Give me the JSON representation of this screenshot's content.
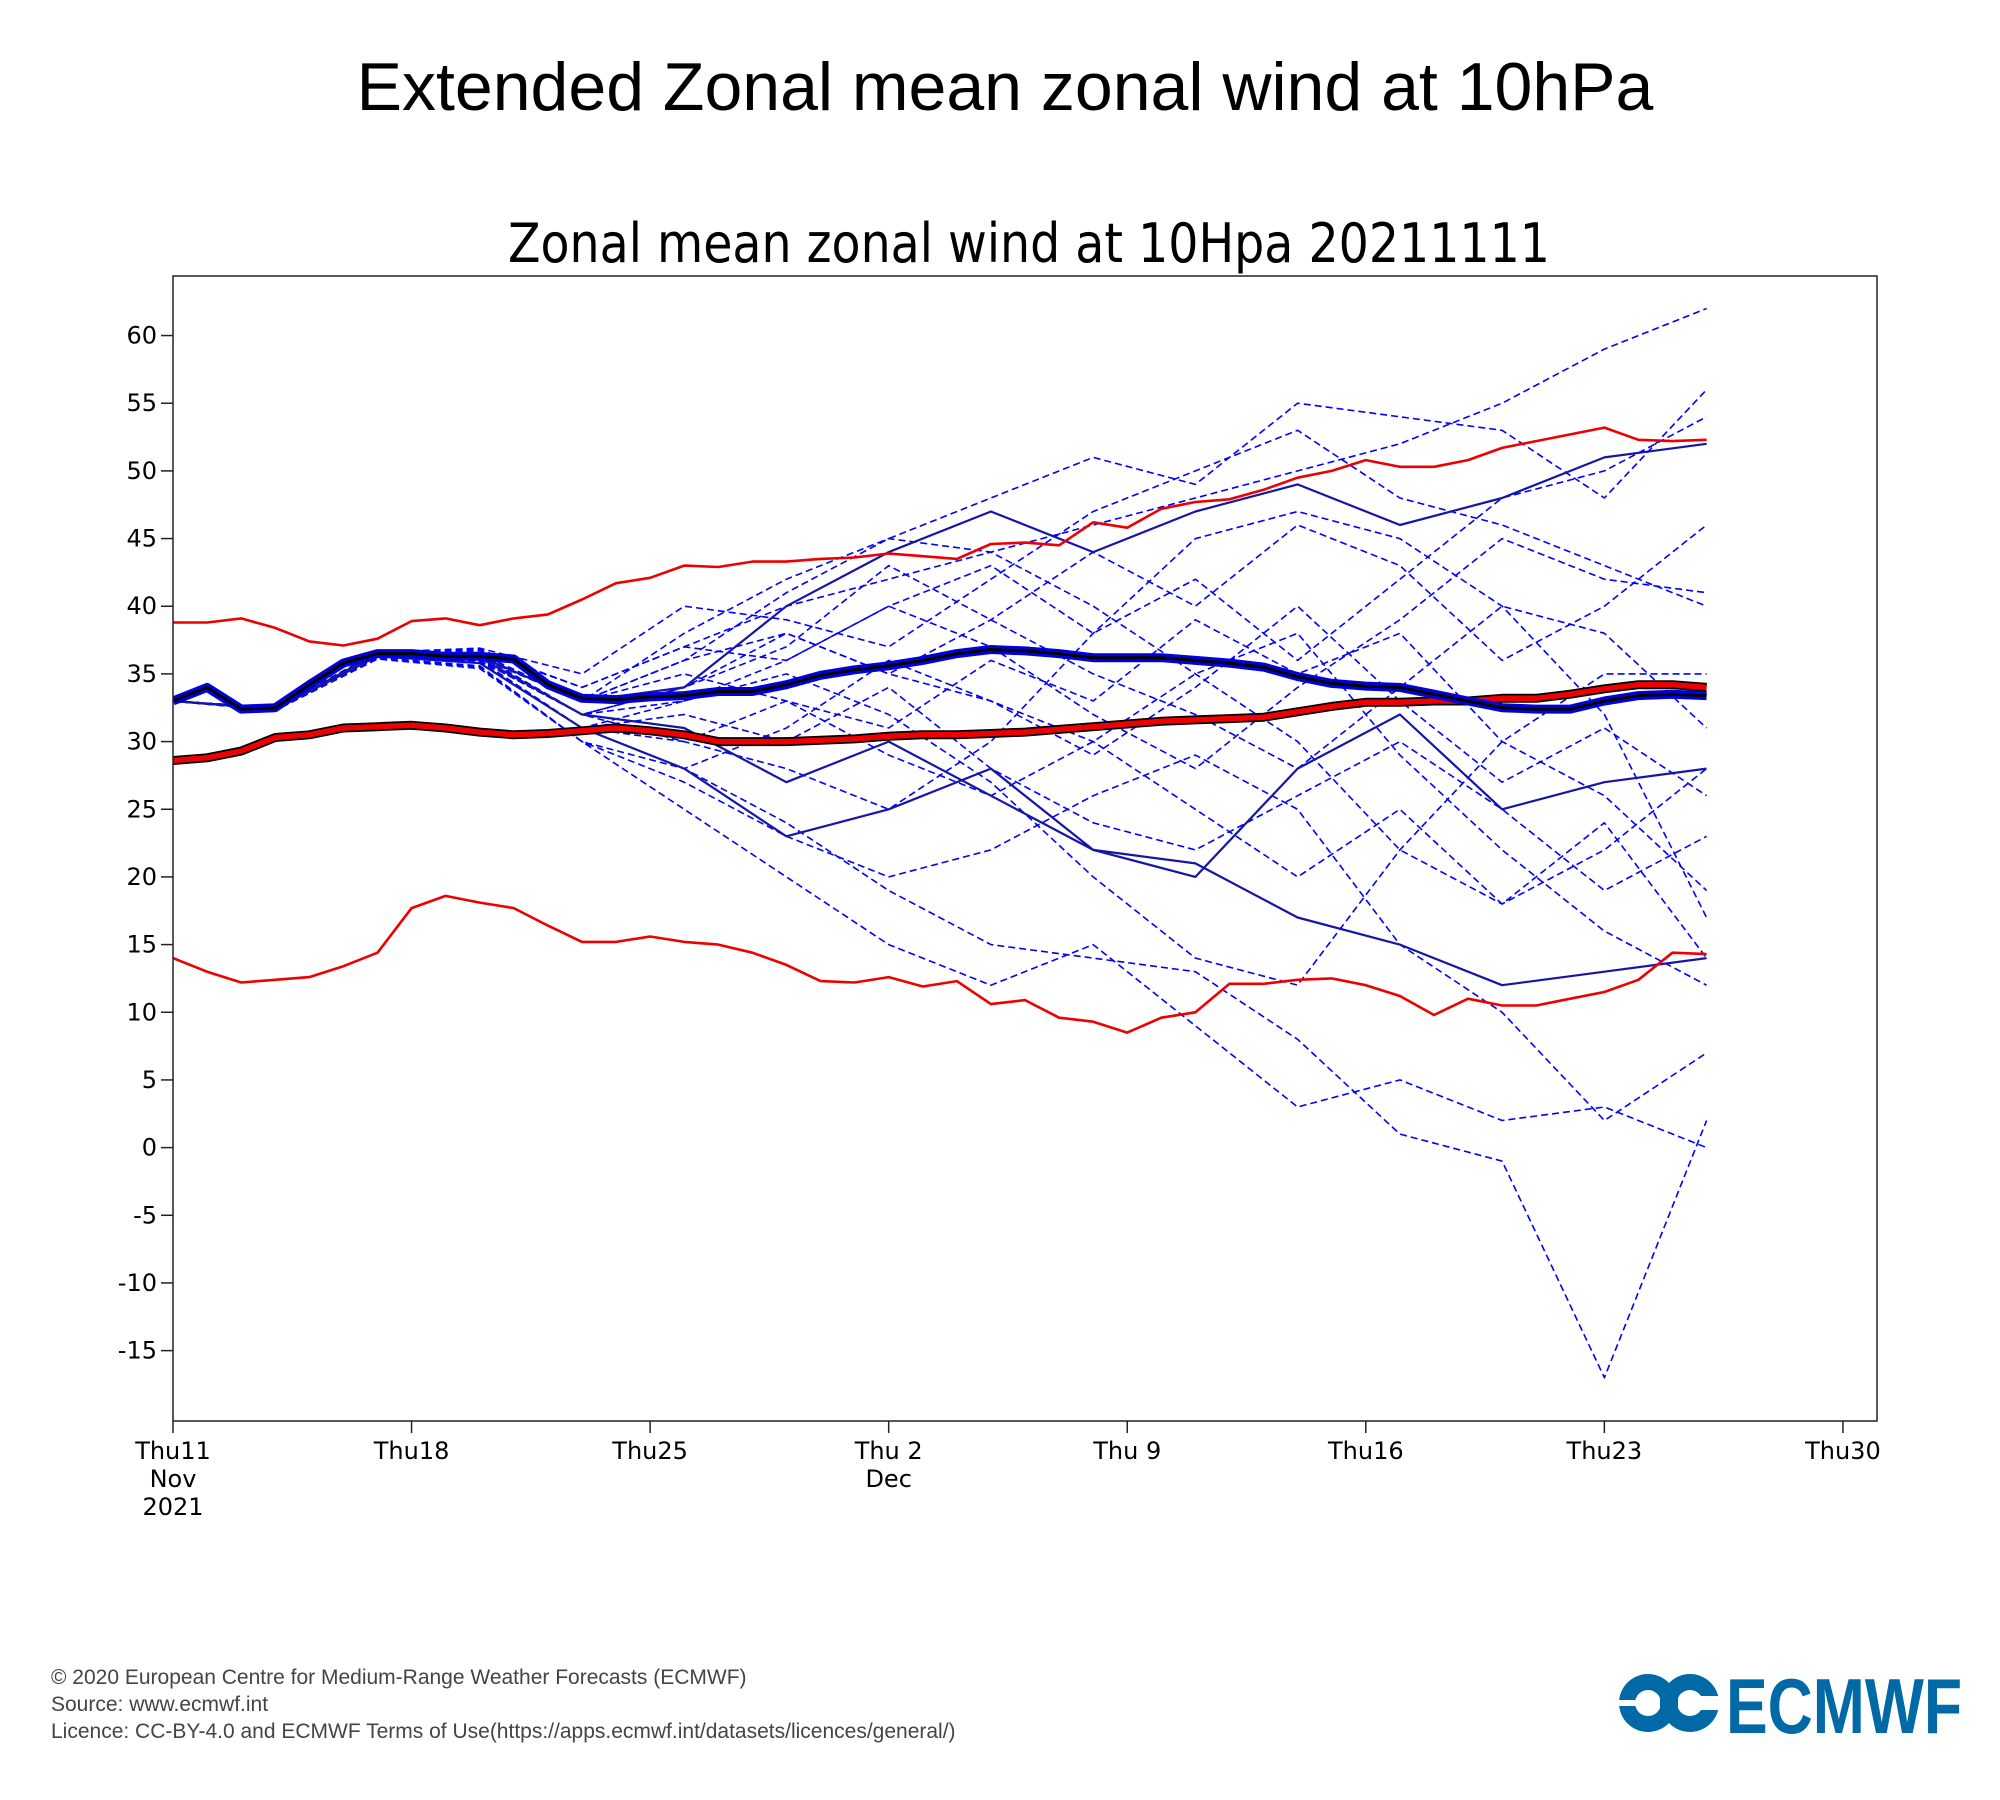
{
  "title": "Extended Zonal mean zonal wind at 10hPa",
  "footer": {
    "line1": "© 2020 European Centre for Medium-Range Weather Forecasts (ECMWF)",
    "line2": "Source: www.ecmwf.int",
    "line3": "Licence: CC-BY-4.0 and ECMWF Terms of Use(https://apps.ecmwf.int/datasets/licences/general/)"
  },
  "logo": {
    "text": "ECMWF",
    "color": "#0069a6"
  },
  "chart_data": {
    "type": "line",
    "title": "Zonal mean zonal wind at 10Hpa 20211111",
    "xlabel": "",
    "ylabel": "",
    "xlim_days": [
      0,
      50
    ],
    "ylim": [
      -20.2,
      64.4
    ],
    "grid": false,
    "yticks": [
      60,
      55,
      50,
      45,
      40,
      35,
      30,
      25,
      20,
      15,
      10,
      5,
      0,
      -5,
      -10,
      -15
    ],
    "xticks": [
      {
        "day": 0,
        "lines": [
          "Thu11",
          "Nov",
          "2021"
        ]
      },
      {
        "day": 7,
        "lines": [
          "Thu18"
        ]
      },
      {
        "day": 14,
        "lines": [
          "Thu25"
        ]
      },
      {
        "day": 21,
        "lines": [
          "Thu 2",
          "Dec"
        ]
      },
      {
        "day": 28,
        "lines": [
          "Thu 9"
        ]
      },
      {
        "day": 35,
        "lines": [
          "Thu16"
        ]
      },
      {
        "day": 42,
        "lines": [
          "Thu23"
        ]
      },
      {
        "day": 49,
        "lines": [
          "Thu30"
        ]
      }
    ],
    "colors": {
      "member": "#0000ff",
      "member_solid": "#1515a8",
      "mean": "#0000e0",
      "clim": "#ee0000"
    },
    "daily_series": [
      {
        "name": "climate-max",
        "style": "red-thin",
        "values": [
          38.8,
          38.8,
          39.1,
          38.4,
          37.4,
          37.1,
          37.6,
          38.9,
          39.1,
          38.6,
          39.1,
          39.4,
          40.5,
          41.7,
          42.1,
          43,
          42.9,
          43.3,
          43.3,
          43.5,
          43.6,
          43.9,
          43.7,
          43.5,
          44.6,
          44.7,
          44.5,
          46.2,
          45.8,
          47.2,
          47.7,
          47.9,
          48.6,
          49.5,
          50,
          50.8,
          50.3,
          50.3,
          50.8,
          51.7,
          52.2,
          52.7,
          53.2,
          52.3,
          52.2,
          52.3
        ]
      },
      {
        "name": "climate-min",
        "style": "red-thin",
        "values": [
          14,
          13,
          12.2,
          12.4,
          12.6,
          13.4,
          14.4,
          17.7,
          18.6,
          18.1,
          17.7,
          16.4,
          15.2,
          15.2,
          15.6,
          15.2,
          15,
          14.4,
          13.5,
          12.3,
          12.2,
          12.6,
          11.9,
          12.3,
          10.6,
          10.9,
          9.6,
          9.3,
          8.5,
          9.6,
          10,
          12.1,
          12.1,
          12.4,
          12.5,
          12,
          11.2,
          9.8,
          11,
          10.5,
          10.5,
          11,
          11.5,
          12.4,
          14.4,
          14.3
        ]
      },
      {
        "name": "climate-mean",
        "style": "red-thick",
        "values": [
          28.6,
          28.8,
          29.3,
          30.3,
          30.5,
          31,
          31.1,
          31.2,
          31,
          30.7,
          30.5,
          30.6,
          30.8,
          31,
          30.8,
          30.5,
          30,
          30,
          30,
          30.1,
          30.2,
          30.4,
          30.5,
          30.5,
          30.6,
          30.7,
          30.9,
          31.1,
          31.3,
          31.5,
          31.6,
          31.7,
          31.8,
          32.2,
          32.6,
          32.9,
          32.9,
          33,
          33,
          33.2,
          33.2,
          33.5,
          33.9,
          34.2,
          34.2,
          34
        ]
      },
      {
        "name": "ensemble-mean",
        "style": "blue-thick",
        "values": [
          33,
          34,
          32.4,
          32.5,
          34.2,
          35.8,
          36.5,
          36.5,
          36.3,
          36.3,
          36.1,
          34.2,
          33.2,
          33.1,
          33.3,
          33.4,
          33.7,
          33.7,
          34.2,
          34.9,
          35.3,
          35.6,
          36,
          36.5,
          36.8,
          36.7,
          36.5,
          36.2,
          36.2,
          36.2,
          36,
          35.8,
          35.5,
          34.8,
          34.3,
          34.1,
          34,
          33.5,
          33,
          32.5,
          32.4,
          32.4,
          33,
          33.4,
          33.5,
          33.4
        ]
      }
    ],
    "member_step_days": 3,
    "members": [
      {
        "style": "dashed",
        "values": [
          33,
          32.4,
          36.5,
          36.8,
          34,
          37,
          40,
          42,
          44,
          46,
          48,
          50,
          52,
          55,
          59,
          62
        ]
      },
      {
        "style": "dashed",
        "values": [
          33,
          32.4,
          36.3,
          36,
          31,
          28,
          24,
          19,
          15,
          14,
          13,
          8,
          1,
          -1,
          -17,
          2
        ]
      },
      {
        "style": "dashed",
        "values": [
          33,
          32.5,
          36.6,
          36.2,
          33,
          36,
          41,
          45,
          48,
          51,
          49,
          55,
          54,
          53,
          48,
          56
        ]
      },
      {
        "style": "dashed",
        "values": [
          33,
          32.3,
          36.2,
          35.5,
          30,
          25,
          20,
          15,
          12,
          15,
          9,
          3,
          5,
          2,
          3,
          0
        ]
      },
      {
        "style": "dashed",
        "values": [
          33,
          32.4,
          36.4,
          36,
          32,
          34,
          38,
          35,
          39,
          44,
          40,
          46,
          43,
          36,
          40,
          46
        ]
      },
      {
        "style": "dashed",
        "values": [
          33,
          32.3,
          36.3,
          35.8,
          31,
          32,
          30,
          34,
          28,
          24,
          22,
          26,
          30,
          25,
          19,
          23
        ]
      },
      {
        "style": "dashed",
        "values": [
          33,
          32.4,
          36.5,
          36.5,
          33,
          38,
          42,
          45,
          44,
          40,
          35,
          30,
          22,
          18,
          22,
          28
        ]
      },
      {
        "style": "dashed",
        "values": [
          33,
          32.4,
          36.2,
          36,
          32,
          30,
          28,
          25,
          30,
          38,
          45,
          47,
          45,
          40,
          32,
          17
        ]
      },
      {
        "style": "dashed",
        "values": [
          33,
          32.5,
          36.6,
          36.9,
          35,
          40,
          39,
          37,
          42,
          47,
          50,
          53,
          48,
          46,
          43,
          40
        ]
      },
      {
        "style": "dashed",
        "values": [
          33,
          32.3,
          36.1,
          35.4,
          30,
          27,
          23,
          20,
          22,
          26,
          29,
          25,
          15,
          10,
          2,
          7
        ]
      },
      {
        "style": "dashed",
        "values": [
          33,
          32.4,
          36.4,
          36.3,
          33,
          35,
          33,
          31,
          36,
          33,
          39,
          35,
          38,
          30,
          26,
          19
        ]
      },
      {
        "style": "dashed",
        "values": [
          33,
          32.4,
          36.4,
          36.1,
          32,
          33,
          36,
          40,
          43,
          38,
          42,
          36,
          42,
          48,
          50,
          54
        ]
      },
      {
        "style": "dashed",
        "values": [
          33,
          32.4,
          36.3,
          35.9,
          31,
          33,
          35,
          32,
          27,
          20,
          14,
          12,
          22,
          30,
          35,
          35
        ]
      },
      {
        "style": "dashed",
        "values": [
          33,
          32.4,
          36.5,
          36.7,
          34,
          37,
          36,
          40,
          37,
          32,
          28,
          34,
          39,
          45,
          42,
          41
        ]
      },
      {
        "style": "dashed",
        "values": [
          33,
          32.3,
          36.2,
          35.6,
          30,
          28,
          31,
          36,
          33,
          30,
          25,
          20,
          25,
          18,
          24,
          14
        ]
      },
      {
        "style": "dashed",
        "values": [
          33,
          32.5,
          36.4,
          36.2,
          33,
          36,
          38,
          35,
          33,
          29,
          34,
          40,
          33,
          27,
          31,
          26
        ]
      },
      {
        "style": "dashed",
        "values": [
          33,
          32.4,
          36.6,
          36.4,
          32,
          34,
          37,
          43,
          39,
          35,
          32,
          28,
          34,
          40,
          38,
          31
        ]
      },
      {
        "style": "dashed",
        "values": [
          33,
          32.4,
          36.3,
          36,
          31,
          30,
          33,
          29,
          26,
          30,
          35,
          38,
          29,
          22,
          16,
          12
        ]
      },
      {
        "style": "solid",
        "values": [
          33,
          32.4,
          36.4,
          36.3,
          33,
          34,
          40,
          44,
          47,
          44,
          47,
          49,
          46,
          48,
          51,
          52
        ]
      },
      {
        "style": "solid",
        "values": [
          33,
          32.4,
          36.3,
          35.8,
          31,
          28,
          23,
          25,
          28,
          22,
          21,
          17,
          15,
          12,
          13,
          14
        ]
      },
      {
        "style": "solid",
        "values": [
          33,
          32.4,
          36.5,
          36.2,
          32,
          31,
          27,
          30,
          26,
          22,
          20,
          28,
          32,
          25,
          27,
          28
        ]
      }
    ]
  }
}
